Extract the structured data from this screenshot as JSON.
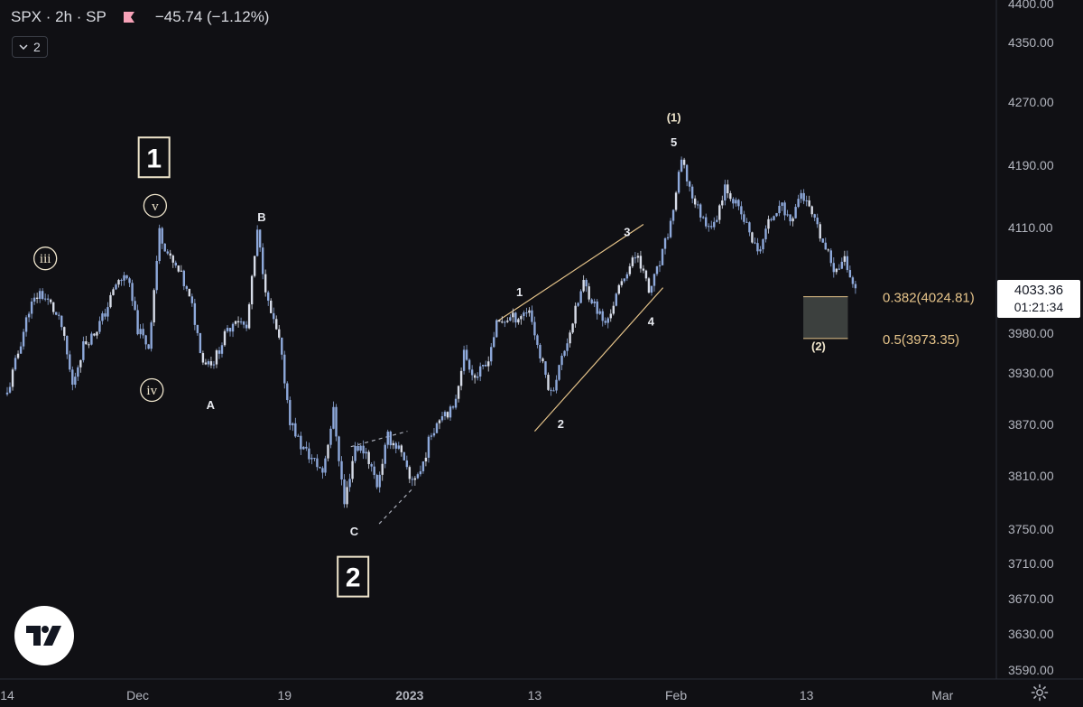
{
  "header": {
    "symbol_line": "SPX · 2h · SP",
    "change": "−45.74 (−1.12%)",
    "flag_color": "#f7a2b8",
    "collapse_label": "2"
  },
  "price_badge": {
    "price": "4033.36",
    "countdown": "01:21:34"
  },
  "fib": [
    {
      "label": "0.382(4024.81)",
      "level": 4024.81
    },
    {
      "label": "0.5(3973.35)",
      "level": 3973.35
    }
  ],
  "colors": {
    "background": "#101014",
    "candle": "#8ea9db",
    "candle_alt": "#d7dce8",
    "label": "#efe5cc",
    "fib_line": "#e6c48a",
    "zone_fill": "#3c403e"
  },
  "icons": {
    "logo": "tradingview-logo-icon",
    "settings": "gear-icon"
  },
  "chart_data": {
    "type": "candlestick",
    "title": "SPX · 2h · SP",
    "ylim": [
      3570,
      4400
    ],
    "y_ticks": [
      4400,
      4350,
      4270,
      4190,
      4110,
      3980,
      3930,
      3870,
      3810,
      3750,
      3710,
      3670,
      3630,
      3590
    ],
    "y_tick_labels": [
      "4400.00",
      "4350.00",
      "4270.00",
      "4190.00",
      "4110.00",
      "3980.00",
      "3930.00",
      "3870.00",
      "3810.00",
      "3750.00",
      "3710.00",
      "3670.00",
      "3630.00",
      "3590.00"
    ],
    "x_ticks": [
      {
        "label": "14",
        "t": 0
      },
      {
        "label": "Dec",
        "t": 12
      },
      {
        "label": "19",
        "t": 25.5
      },
      {
        "label": "2023",
        "t": 37
      },
      {
        "label": "13",
        "t": 48.5
      },
      {
        "label": "Feb",
        "t": 61.5
      },
      {
        "label": "13",
        "t": 73.5
      },
      {
        "label": "Mar",
        "t": 86
      }
    ],
    "series": [
      {
        "values": [
          [
            0,
            3905
          ],
          [
            1,
            3955
          ],
          [
            2,
            4010
          ],
          [
            3,
            4030
          ],
          [
            4,
            4015
          ],
          [
            5,
            3988
          ],
          [
            6,
            3915
          ],
          [
            7,
            3965
          ],
          [
            8,
            3980
          ],
          [
            9,
            4005
          ],
          [
            10,
            4040
          ],
          [
            11,
            4052
          ],
          [
            12,
            3985
          ],
          [
            13,
            3963
          ],
          [
            14,
            4105
          ],
          [
            15,
            4070
          ],
          [
            16,
            4050
          ],
          [
            17,
            4012
          ],
          [
            18,
            3945
          ],
          [
            19,
            3945
          ],
          [
            20,
            3976
          ],
          [
            21,
            4000
          ],
          [
            22,
            3985
          ],
          [
            23,
            4103
          ],
          [
            24,
            4015
          ],
          [
            25,
            3970
          ],
          [
            26,
            3875
          ],
          [
            27,
            3845
          ],
          [
            28,
            3830
          ],
          [
            29,
            3815
          ],
          [
            30,
            3885
          ],
          [
            31,
            3778
          ],
          [
            32,
            3845
          ],
          [
            33,
            3838
          ],
          [
            34,
            3800
          ],
          [
            35,
            3855
          ],
          [
            36,
            3842
          ],
          [
            37,
            3805
          ],
          [
            38,
            3815
          ],
          [
            39,
            3860
          ],
          [
            40,
            3885
          ],
          [
            41,
            3885
          ],
          [
            42,
            3955
          ],
          [
            43,
            3925
          ],
          [
            44,
            3938
          ],
          [
            45,
            3990
          ],
          [
            46,
            3998
          ],
          [
            47,
            4000
          ],
          [
            48,
            4010
          ],
          [
            49,
            3950
          ],
          [
            50,
            3905
          ],
          [
            51,
            3948
          ],
          [
            52,
            3995
          ],
          [
            53,
            4042
          ],
          [
            54,
            4015
          ],
          [
            55,
            3990
          ],
          [
            56,
            4025
          ],
          [
            57,
            4058
          ],
          [
            58,
            4078
          ],
          [
            59,
            4030
          ],
          [
            60,
            4065
          ],
          [
            61,
            4115
          ],
          [
            62,
            4195
          ],
          [
            63,
            4150
          ],
          [
            64,
            4120
          ],
          [
            65,
            4112
          ],
          [
            66,
            4165
          ],
          [
            67,
            4140
          ],
          [
            68,
            4112
          ],
          [
            69,
            4078
          ],
          [
            70,
            4115
          ],
          [
            71,
            4142
          ],
          [
            72,
            4118
          ],
          [
            73,
            4155
          ],
          [
            74,
            4125
          ],
          [
            75,
            4090
          ],
          [
            76,
            4060
          ],
          [
            77,
            4070
          ],
          [
            78,
            4033
          ]
        ]
      }
    ],
    "annotations": [
      {
        "text": "1",
        "style": "box",
        "t": 13.5,
        "price": 4200
      },
      {
        "text": "2",
        "style": "box",
        "t": 31.8,
        "price": 3695
      },
      {
        "text": "iii",
        "style": "circle",
        "t": 3.5,
        "price": 4072
      },
      {
        "text": "v",
        "style": "circle",
        "t": 13.6,
        "price": 4138
      },
      {
        "text": "iv",
        "style": "circle",
        "t": 13.3,
        "price": 3910
      },
      {
        "text": "A",
        "style": "plain",
        "t": 18.7,
        "price": 3893
      },
      {
        "text": "B",
        "style": "plain",
        "t": 23.4,
        "price": 4124
      },
      {
        "text": "C",
        "style": "plain",
        "t": 31.9,
        "price": 3748
      },
      {
        "text": "1",
        "style": "plain",
        "t": 47.1,
        "price": 4031
      },
      {
        "text": "2",
        "style": "plain",
        "t": 50.9,
        "price": 3871
      },
      {
        "text": "3",
        "style": "plain",
        "t": 57.0,
        "price": 4105
      },
      {
        "text": "4",
        "style": "plain",
        "t": 59.2,
        "price": 3995
      },
      {
        "text": "5",
        "style": "plain",
        "t": 61.3,
        "price": 4220
      },
      {
        "text": "(1)",
        "style": "plain",
        "t": 61.3,
        "price": 4251
      },
      {
        "text": "(2)",
        "style": "plain",
        "t": 74.6,
        "price": 3964
      }
    ],
    "trendlines": [
      {
        "style": "solid",
        "from": [
          45,
          3994
        ],
        "to": [
          58.5,
          4114
        ]
      },
      {
        "style": "solid",
        "from": [
          48.5,
          3862
        ],
        "to": [
          60.3,
          4036
        ]
      },
      {
        "style": "dashed",
        "from": [
          31.6,
          3844
        ],
        "to": [
          36.8,
          3862
        ]
      },
      {
        "style": "dashed",
        "from": [
          34.2,
          3756
        ],
        "to": [
          37.3,
          3796
        ]
      }
    ],
    "target_zone": {
      "from_t": 73.2,
      "to_t": 77.3,
      "top": 4024.81,
      "bottom": 3973.35
    }
  }
}
